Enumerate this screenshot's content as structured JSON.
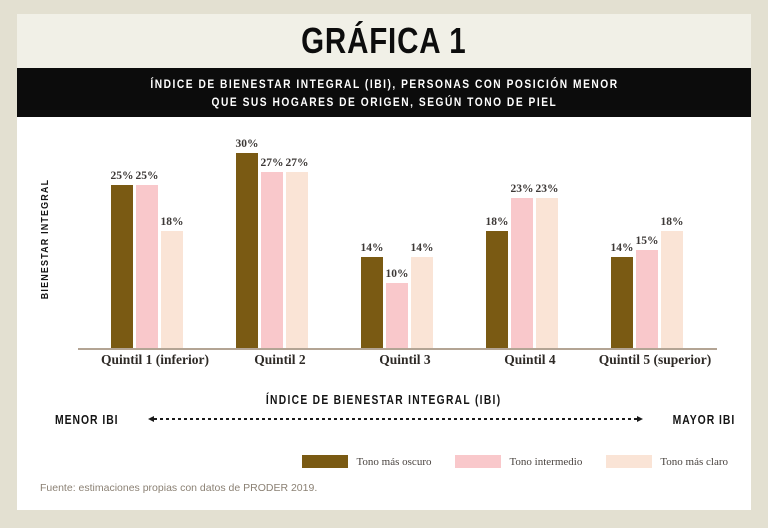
{
  "header": {
    "title": "GRÁFICA 1"
  },
  "banner": {
    "line1": "ÍNDICE DE BIENESTAR INTEGRAL (IBI), PERSONAS CON POSICIÓN MENOR",
    "line2": "QUE SUS HOGARES DE ORIGEN, SEGÚN TONO DE PIEL"
  },
  "chart_data": {
    "type": "bar",
    "title": "Índice de Bienestar Integral (IBI), personas con posición menor que sus hogares de origen, según tono de piel",
    "categories": [
      "Quintil 1 (inferior)",
      "Quintil 2",
      "Quintil 3",
      "Quintil 4",
      "Quintil 5 (superior)"
    ],
    "series": [
      {
        "name": "Tono más oscuro",
        "color": "#7a5a13",
        "values": [
          25,
          30,
          14,
          18,
          14
        ]
      },
      {
        "name": "Tono intermedio",
        "color": "#f9c8cb",
        "values": [
          25,
          27,
          10,
          23,
          15
        ]
      },
      {
        "name": "Tono más claro",
        "color": "#fae4d6",
        "values": [
          18,
          27,
          14,
          23,
          18
        ]
      }
    ],
    "value_suffix": "%",
    "ylabel": "BIENESTAR INTEGRAL",
    "xlabel": "ÍNDICE DE BIENESTAR INTEGRAL (IBI)",
    "x_axis_annotation_left": "MENOR IBI",
    "x_axis_annotation_right": "MAYOR IBI",
    "ylim": [
      0,
      30
    ],
    "grid": false,
    "legend_position": "bottom-right"
  },
  "footer": {
    "source": "Fuente: estimaciones propias con datos de PRODER 2019."
  },
  "colors": {
    "outer_background": "#e3e0d1",
    "panel_background": "#ffffff",
    "title_strip_background": "#f1f0e7",
    "banner_background": "#0c0c0c",
    "banner_text": "#ffffff",
    "axis_line": "#b3a494",
    "category_text": "#2e2a26",
    "value_text": "#3c3836",
    "source_text": "#8b8174"
  }
}
